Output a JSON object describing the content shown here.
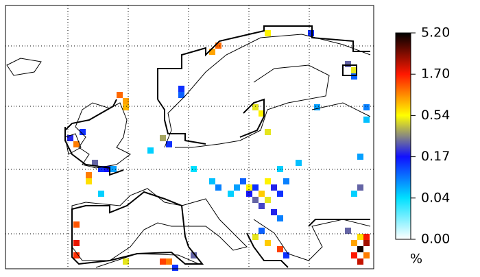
{
  "chart_data": {
    "type": "gridmap",
    "unit": "%",
    "colorbar_ticks": [
      {
        "value": 0,
        "label": "0.00"
      },
      0.04,
      0.17,
      0.54,
      {
        "value": 1.7,
        "label": "1.70"
      },
      {
        "value": 5.2,
        "label": "5.20"
      }
    ],
    "colorbar_colors": [
      "#ffffff",
      "#00e0ff",
      "#1010ff",
      "#ffff00",
      "#ff1800",
      "#000000"
    ],
    "cells": [
      [
        57,
        39,
        5.0
      ],
      [
        58,
        38,
        3.0
      ],
      [
        58,
        37,
        1.8
      ],
      [
        57,
        41,
        2.5
      ],
      [
        56,
        40,
        1.7
      ],
      [
        58,
        40,
        1.2
      ],
      [
        57,
        37,
        0.7
      ],
      [
        55,
        36,
        0.3
      ],
      [
        56,
        38,
        1.0
      ],
      [
        39,
        29,
        0.6
      ],
      [
        40,
        29,
        0.15
      ],
      [
        41,
        30,
        0.8
      ],
      [
        42,
        31,
        0.5
      ],
      [
        43,
        29,
        0.2
      ],
      [
        38,
        28,
        0.12
      ],
      [
        44,
        30,
        0.15
      ],
      [
        40,
        31,
        0.3
      ],
      [
        39,
        30,
        0.18
      ],
      [
        45,
        28,
        0.1
      ],
      [
        42,
        28,
        0.6
      ],
      [
        37,
        29,
        0.08
      ],
      [
        36,
        30,
        0.05
      ],
      [
        41,
        32,
        0.25
      ],
      [
        43,
        33,
        0.2
      ],
      [
        44,
        34,
        0.1
      ],
      [
        41,
        36,
        0.12
      ],
      [
        42,
        38,
        0.8
      ],
      [
        40,
        37,
        0.5
      ],
      [
        44,
        39,
        1.5
      ],
      [
        45,
        40,
        0.15
      ],
      [
        11,
        22,
        1.2
      ],
      [
        10,
        21,
        0.2
      ],
      [
        18,
        14,
        1.3
      ],
      [
        19,
        15,
        1.0
      ],
      [
        19,
        16,
        0.9
      ],
      [
        12,
        20,
        0.15
      ],
      [
        14,
        25,
        0.3
      ],
      [
        15,
        26,
        0.15
      ],
      [
        16,
        26,
        0.17
      ],
      [
        17,
        26,
        0.08
      ],
      [
        13,
        27,
        1.2
      ],
      [
        25,
        21,
        0.4
      ],
      [
        26,
        22,
        0.15
      ],
      [
        23,
        23,
        0.05
      ],
      [
        28,
        13,
        0.15
      ],
      [
        28,
        14,
        0.12
      ],
      [
        33,
        7,
        1.0
      ],
      [
        34,
        6,
        1.3
      ],
      [
        42,
        4,
        0.6
      ],
      [
        49,
        4,
        0.15
      ],
      [
        55,
        9,
        0.3
      ],
      [
        56,
        10,
        0.5
      ],
      [
        56,
        11,
        0.12
      ],
      [
        41,
        17,
        0.6
      ],
      [
        40,
        16,
        0.5
      ],
      [
        42,
        20,
        0.5
      ],
      [
        50,
        16,
        0.08
      ],
      [
        58,
        16,
        0.1
      ],
      [
        58,
        18,
        0.06
      ],
      [
        57,
        24,
        0.08
      ],
      [
        57,
        29,
        0.3
      ],
      [
        56,
        30,
        0.05
      ],
      [
        47,
        25,
        0.06
      ],
      [
        44,
        26,
        0.05
      ],
      [
        30,
        26,
        0.04
      ],
      [
        33,
        28,
        0.06
      ],
      [
        34,
        29,
        0.1
      ],
      [
        11,
        35,
        1.4
      ],
      [
        11,
        38,
        2.0
      ],
      [
        11,
        40,
        1.6
      ],
      [
        19,
        41,
        0.5
      ],
      [
        25,
        41,
        1.5
      ],
      [
        26,
        41,
        1.2
      ],
      [
        27,
        42,
        0.15
      ],
      [
        30,
        40,
        0.3
      ],
      [
        13,
        28,
        0.7
      ],
      [
        15,
        30,
        0.05
      ]
    ]
  }
}
